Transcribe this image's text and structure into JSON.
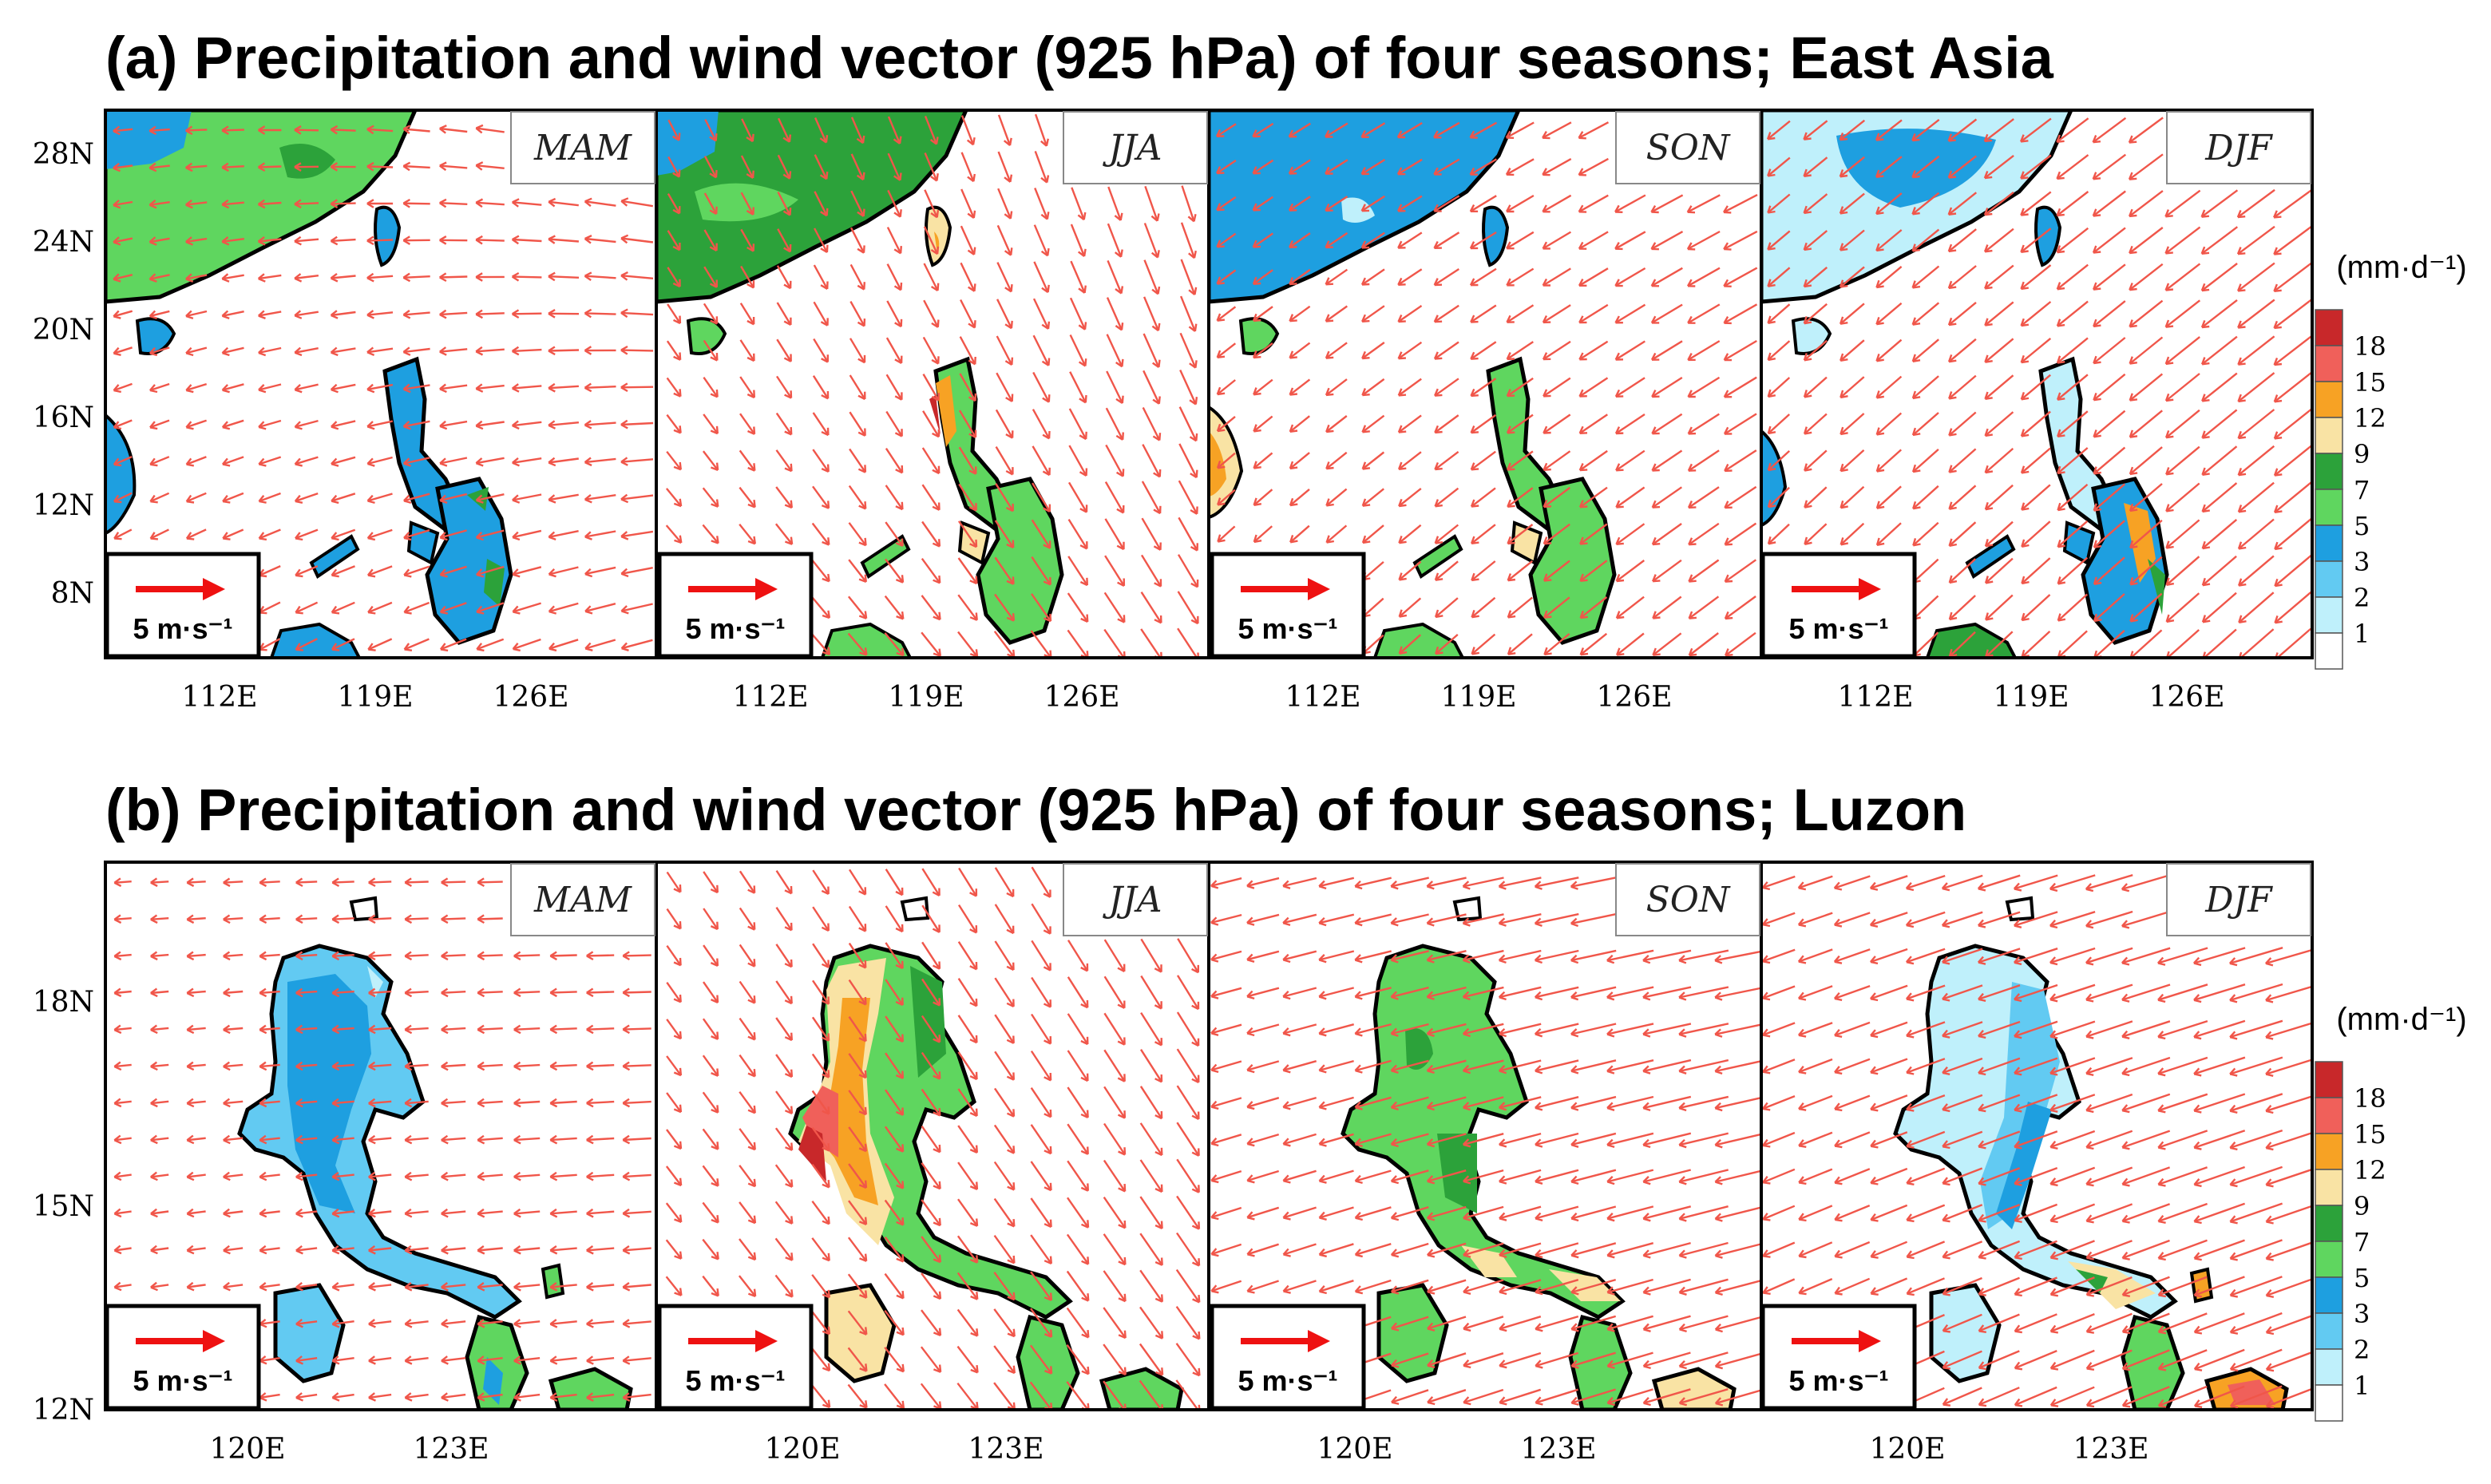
{
  "panels": [
    {
      "id": "a",
      "title": "(a) Precipitation and wind vector (925 hPa) of four seasons; East Asia",
      "lat_ticks": [
        "28N",
        "24N",
        "20N",
        "16N",
        "12N",
        "8N"
      ],
      "lon_ticks": [
        "112E",
        "119E",
        "126E"
      ],
      "seasons": [
        "MAM",
        "JJA",
        "SON",
        "DJF"
      ],
      "reference_vector": "5 m·s⁻¹"
    },
    {
      "id": "b",
      "title": "(b) Precipitation and wind vector (925 hPa) of four seasons; Luzon",
      "lat_ticks": [
        "18N",
        "15N",
        "12N"
      ],
      "lon_ticks": [
        "120E",
        "123E"
      ],
      "seasons": [
        "MAM",
        "JJA",
        "SON",
        "DJF"
      ],
      "reference_vector": "5 m·s⁻¹"
    }
  ],
  "colorbar": {
    "unit": "(mm·d⁻¹)",
    "levels": [
      "18",
      "15",
      "12",
      "9",
      "7",
      "5",
      "3",
      "2",
      "1"
    ],
    "colors": [
      "#c8282a",
      "#f0605a",
      "#f7a224",
      "#f9e3a4",
      "#2ca23a",
      "#5fd65f",
      "#1e9fe0",
      "#62caf2",
      "#bff0fb",
      "#ffffff"
    ]
  },
  "style": {
    "wind_arrow_color": "#f0564a",
    "reference_arrow_color": "#ee1111",
    "ocean_color": "#ffffff",
    "coast_color": "#000000"
  }
}
